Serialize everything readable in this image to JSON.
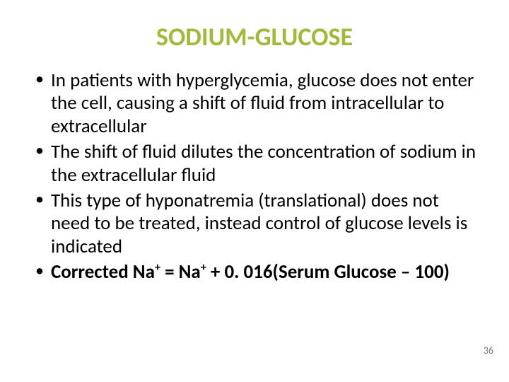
{
  "title": "SODIUM-GLUCOSE",
  "title_color": "#9fbb3c",
  "title_fontsize": 36,
  "bullet_color": "#000000",
  "bullet_fontsize": 27,
  "background_color": "#ffffff",
  "bullets": {
    "b0": "In patients with hyperglycemia, glucose does not enter the cell, causing a shift of fluid from intracellular to extracellular",
    "b1": "The shift of fluid dilutes the concentration of sodium in the extracellular fluid",
    "b2": "This type of hyponatremia (translational) does not need to be treated, instead control of glucose levels is indicated",
    "b3_pre": "Corrected Na",
    "b3_sup1": "+",
    "b3_mid": " = Na",
    "b3_sup2": "+",
    "b3_post": " + 0. 016(Serum Glucose – 100)"
  },
  "page_number": "36"
}
